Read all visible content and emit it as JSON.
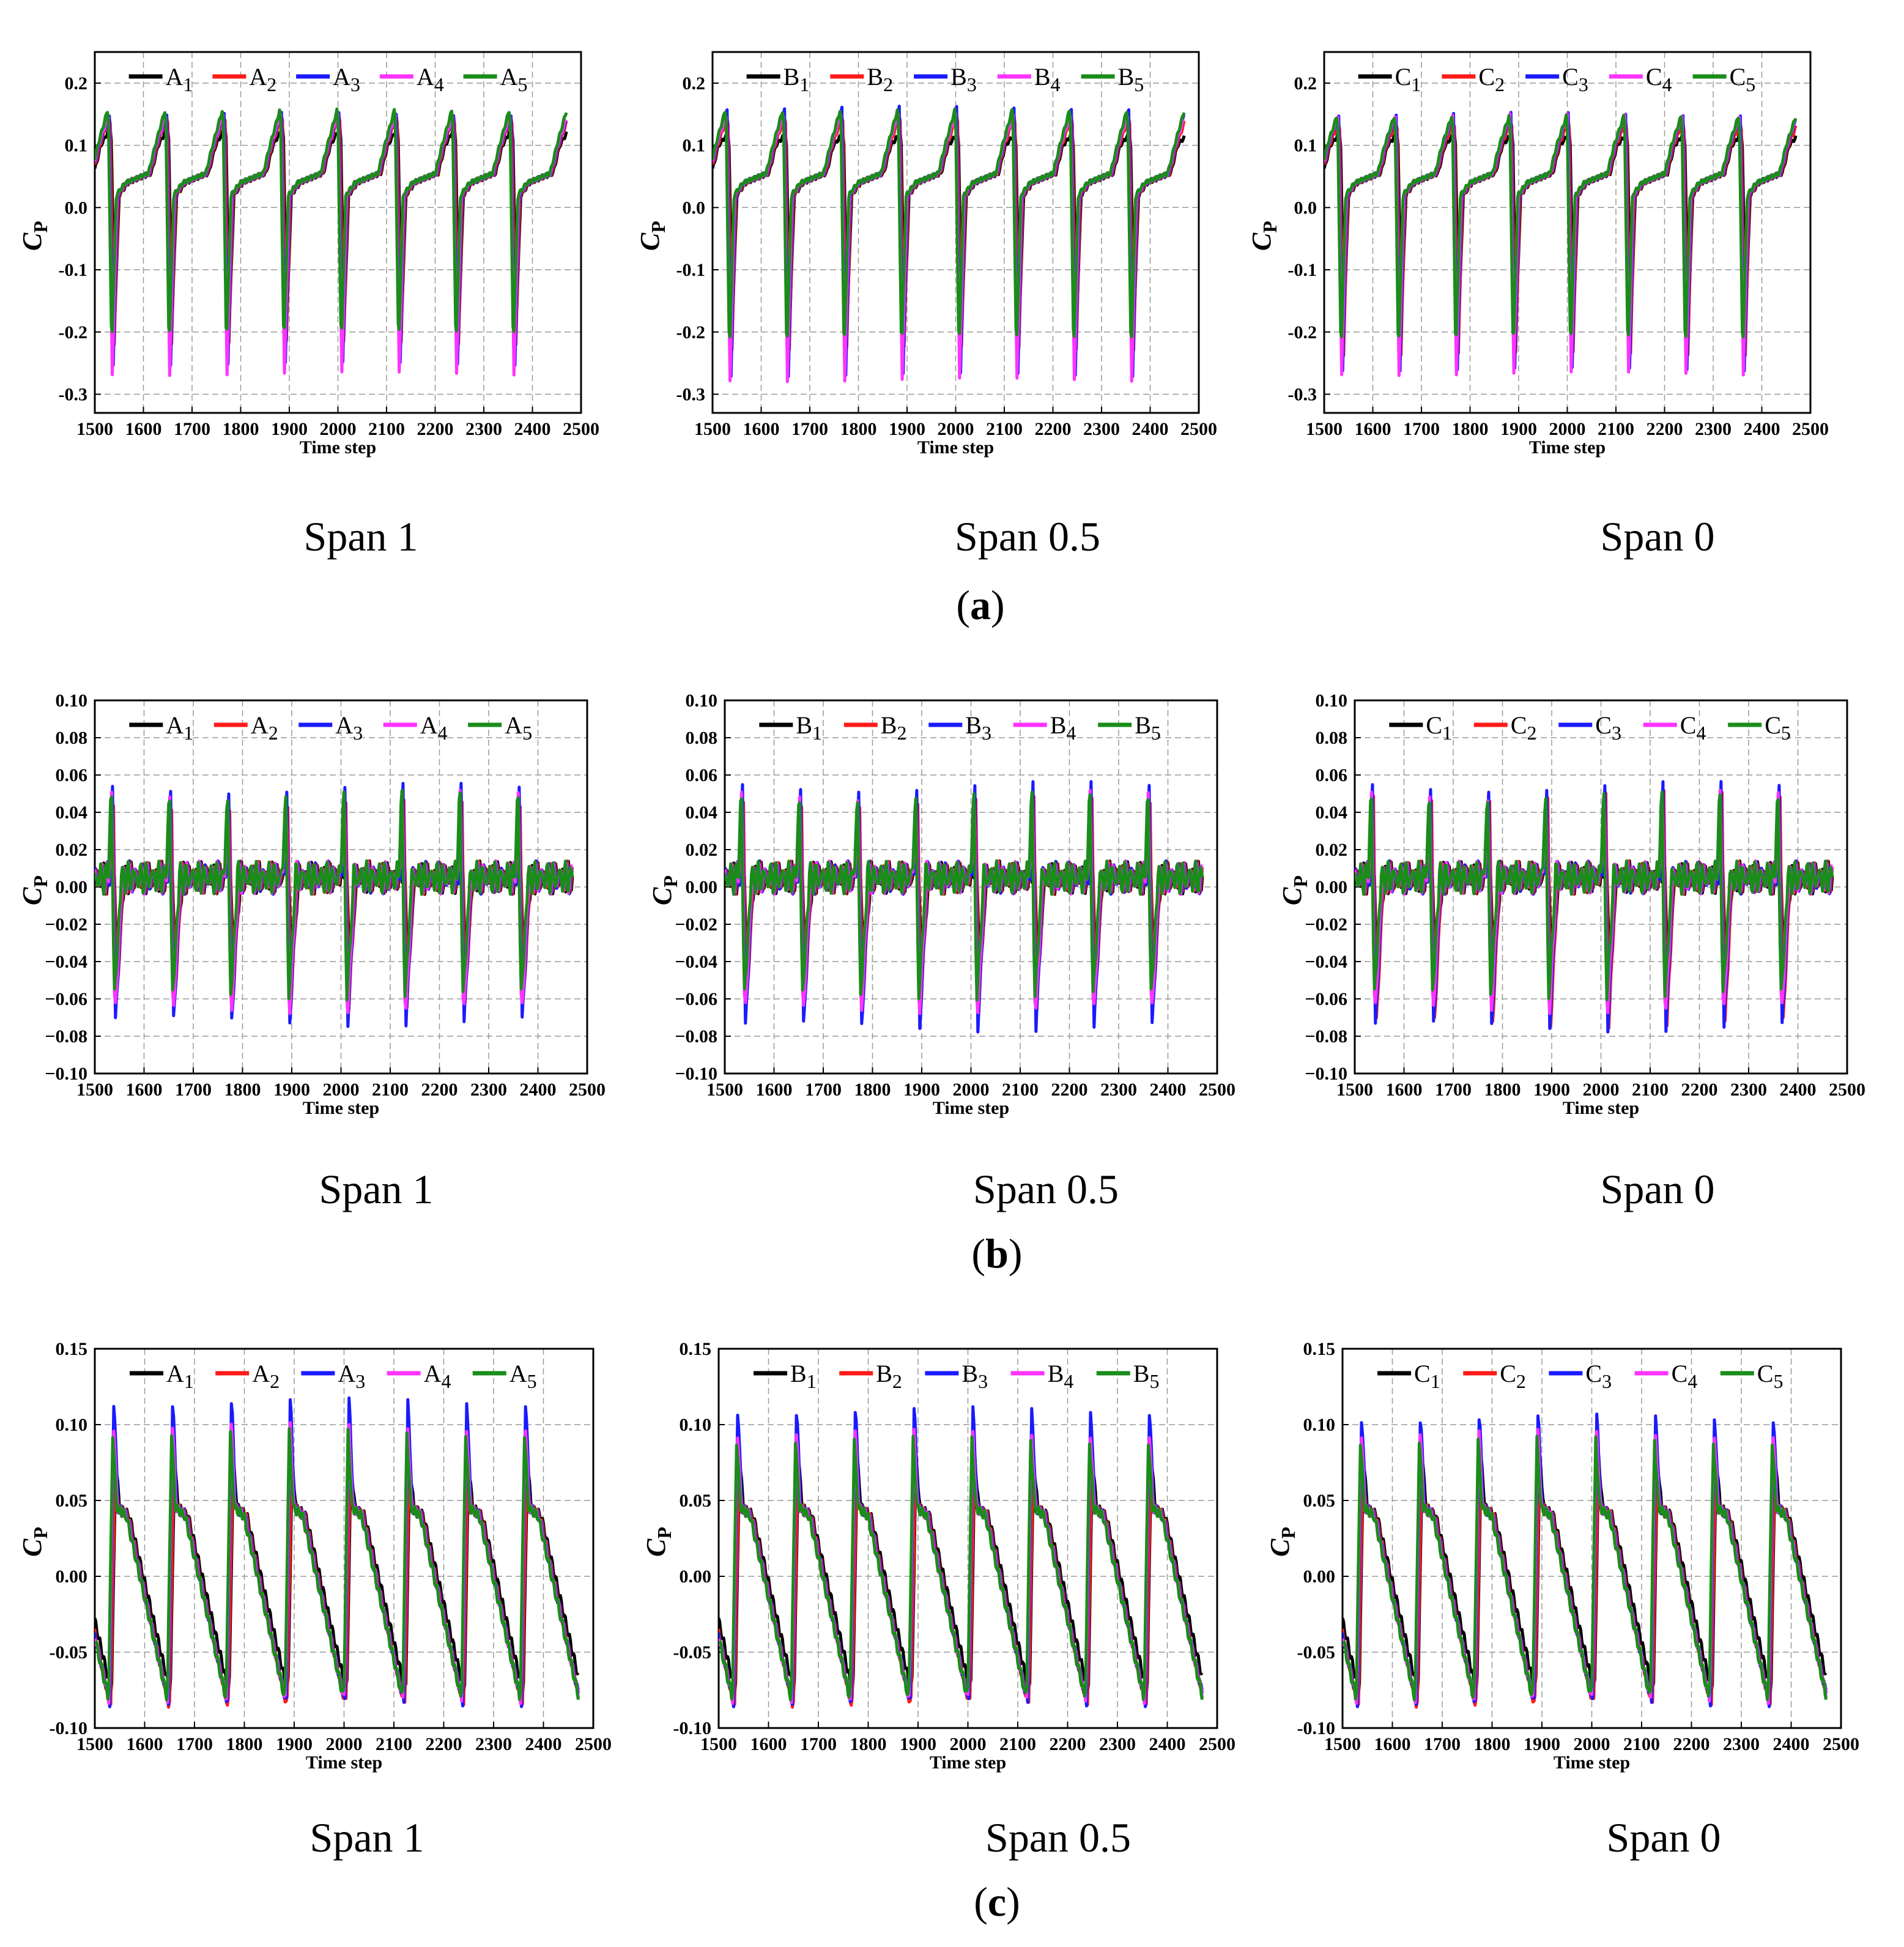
{
  "colors": {
    "series": [
      "#000000",
      "#ff1a1a",
      "#1a1aff",
      "#ff33ff",
      "#1a8c1a"
    ],
    "grid": "#9a9a9a",
    "axis": "#000000"
  },
  "axis": {
    "xlabel": "Time step",
    "ylabel": "C",
    "ylabel_sub": "P",
    "xlim": [
      1500,
      2500
    ],
    "xticks": [
      "1500",
      "1600",
      "1700",
      "1800",
      "1900",
      "2000",
      "2100",
      "2200",
      "2300",
      "2400",
      "2500"
    ]
  },
  "row_labels": [
    {
      "open": "(",
      "id": "a",
      "close": ")"
    },
    {
      "open": "(",
      "id": "b",
      "close": ")"
    },
    {
      "open": "(",
      "id": "c",
      "close": ")"
    }
  ],
  "chart_data": [
    {
      "type": "line",
      "row": 0,
      "caption": "Span 1",
      "legend": [
        "A",
        "A",
        "A",
        "A",
        "A"
      ],
      "legend_sub": [
        "1",
        "2",
        "3",
        "4",
        "5"
      ],
      "ylim": [
        -0.33,
        0.25
      ],
      "yticks": [
        "0.2",
        "0.1",
        "0.0",
        "-0.1",
        "-0.2",
        "-0.3"
      ],
      "ytick_values": [
        0.2,
        0.1,
        0.0,
        -0.1,
        -0.2,
        -0.3
      ],
      "waveform": "a",
      "t_start": 1500,
      "t_end": 2470,
      "period": 118,
      "series_minima": [
        -0.19,
        -0.25,
        -0.28,
        -0.27,
        -0.23
      ],
      "series_maxima": [
        0.13,
        0.15,
        0.15,
        0.15,
        0.16
      ]
    },
    {
      "type": "line",
      "row": 0,
      "caption": "Span 0.5",
      "legend": [
        "B",
        "B",
        "B",
        "B",
        "B"
      ],
      "legend_sub": [
        "1",
        "2",
        "3",
        "4",
        "5"
      ],
      "ylim": [
        -0.33,
        0.25
      ],
      "yticks": [
        "0.2",
        "0.1",
        "0.0",
        "-0.1",
        "-0.2",
        "-0.3"
      ],
      "ytick_values": [
        0.2,
        0.1,
        0.0,
        -0.1,
        -0.2,
        -0.3
      ],
      "waveform": "a",
      "t_start": 1500,
      "t_end": 2470,
      "period": 118,
      "series_minima": [
        -0.19,
        -0.26,
        -0.3,
        -0.28,
        -0.24
      ],
      "series_maxima": [
        0.12,
        0.15,
        0.16,
        0.15,
        0.16
      ]
    },
    {
      "type": "line",
      "row": 0,
      "caption": "Span 0",
      "legend": [
        "C",
        "C",
        "C",
        "C",
        "C"
      ],
      "legend_sub": [
        "1",
        "2",
        "3",
        "4",
        "5"
      ],
      "ylim": [
        -0.33,
        0.25
      ],
      "yticks": [
        "0.2",
        "0.1",
        "0.0",
        "-0.1",
        "-0.2",
        "-0.3"
      ],
      "ytick_values": [
        0.2,
        0.1,
        0.0,
        -0.1,
        -0.2,
        -0.3
      ],
      "waveform": "a",
      "t_start": 1500,
      "t_end": 2470,
      "period": 118,
      "series_minima": [
        -0.19,
        -0.27,
        -0.29,
        -0.27,
        -0.24
      ],
      "series_maxima": [
        0.12,
        0.14,
        0.15,
        0.15,
        0.15
      ]
    },
    {
      "type": "line",
      "row": 1,
      "caption": "Span 1",
      "legend": [
        "A",
        "A",
        "A",
        "A",
        "A"
      ],
      "legend_sub": [
        "1",
        "2",
        "3",
        "4",
        "5"
      ],
      "ylim": [
        -0.1,
        0.1
      ],
      "yticks": [
        "0.10",
        "0.08",
        "0.06",
        "0.04",
        "0.02",
        "0.00",
        "−0.02",
        "−0.04",
        "−0.06",
        "−0.08",
        "−0.10"
      ],
      "ytick_values": [
        0.1,
        0.08,
        0.06,
        0.04,
        0.02,
        0.0,
        -0.02,
        -0.04,
        -0.06,
        -0.08,
        -0.1
      ],
      "waveform": "b",
      "t_start": 1500,
      "t_end": 2470,
      "period": 118,
      "series_minima": [
        -0.045,
        -0.065,
        -0.073,
        -0.072,
        -0.06
      ],
      "series_maxima": [
        0.012,
        0.05,
        0.055,
        0.055,
        0.058
      ]
    },
    {
      "type": "line",
      "row": 1,
      "caption": "Span 0.5",
      "legend": [
        "B",
        "B",
        "B",
        "B",
        "B"
      ],
      "legend_sub": [
        "1",
        "2",
        "3",
        "4",
        "5"
      ],
      "ylim": [
        -0.1,
        0.1
      ],
      "yticks": [
        "0.10",
        "0.08",
        "0.06",
        "0.04",
        "0.02",
        "0.00",
        "−0.02",
        "−0.04",
        "−0.06",
        "−0.08",
        "−0.10"
      ],
      "ytick_values": [
        0.1,
        0.08,
        0.06,
        0.04,
        0.02,
        0.0,
        -0.02,
        -0.04,
        -0.06,
        -0.08,
        -0.1
      ],
      "waveform": "b",
      "t_start": 1500,
      "t_end": 2470,
      "period": 118,
      "series_minima": [
        -0.045,
        -0.066,
        -0.076,
        -0.072,
        -0.06
      ],
      "series_maxima": [
        0.012,
        0.052,
        0.056,
        0.055,
        0.057
      ]
    },
    {
      "type": "line",
      "row": 1,
      "caption": "Span 0",
      "legend": [
        "C",
        "C",
        "C",
        "C",
        "C"
      ],
      "legend_sub": [
        "1",
        "2",
        "3",
        "4",
        "5"
      ],
      "ylim": [
        -0.1,
        0.1
      ],
      "yticks": [
        "0.10",
        "0.08",
        "0.06",
        "0.04",
        "0.02",
        "0.00",
        "−0.02",
        "−0.04",
        "−0.06",
        "−0.08",
        "−0.10"
      ],
      "ytick_values": [
        0.1,
        0.08,
        0.06,
        0.04,
        0.02,
        0.0,
        -0.02,
        -0.04,
        -0.06,
        -0.08,
        -0.1
      ],
      "waveform": "b",
      "t_start": 1500,
      "t_end": 2470,
      "period": 118,
      "series_minima": [
        -0.045,
        -0.075,
        -0.076,
        -0.072,
        -0.06
      ],
      "series_maxima": [
        0.013,
        0.056,
        0.056,
        0.055,
        0.057
      ]
    },
    {
      "type": "line",
      "row": 2,
      "caption": "Span 1",
      "legend": [
        "A",
        "A",
        "A",
        "A",
        "A"
      ],
      "legend_sub": [
        "1",
        "2",
        "3",
        "4",
        "5"
      ],
      "ylim": [
        -0.1,
        0.15
      ],
      "yticks": [
        "0.15",
        "0.10",
        "0.05",
        "0.00",
        "-0.05",
        "-0.10"
      ],
      "ytick_values": [
        0.15,
        0.1,
        0.05,
        0.0,
        -0.05,
        -0.1
      ],
      "waveform": "c",
      "t_start": 1500,
      "t_end": 2470,
      "period": 118,
      "series_minima": [
        -0.077,
        -0.086,
        -0.083,
        -0.082,
        -0.081
      ],
      "series_maxima": [
        0.075,
        0.065,
        0.121,
        0.105,
        0.095
      ]
    },
    {
      "type": "line",
      "row": 2,
      "caption": "Span 0.5",
      "legend": [
        "B",
        "B",
        "B",
        "B",
        "B"
      ],
      "legend_sub": [
        "1",
        "2",
        "3",
        "4",
        "5"
      ],
      "ylim": [
        -0.1,
        0.15
      ],
      "yticks": [
        "0.15",
        "0.10",
        "0.05",
        "0.00",
        "-0.05",
        "-0.10"
      ],
      "ytick_values": [
        0.15,
        0.1,
        0.05,
        0.0,
        -0.05,
        -0.1
      ],
      "waveform": "c",
      "t_start": 1500,
      "t_end": 2470,
      "period": 118,
      "series_minima": [
        -0.077,
        -0.086,
        -0.083,
        -0.082,
        -0.081
      ],
      "series_maxima": [
        0.078,
        0.062,
        0.115,
        0.1,
        0.09
      ]
    },
    {
      "type": "line",
      "row": 2,
      "caption": "Span 0",
      "legend": [
        "C",
        "C",
        "C",
        "C",
        "C"
      ],
      "legend_sub": [
        "1",
        "2",
        "3",
        "4",
        "5"
      ],
      "ylim": [
        -0.1,
        0.15
      ],
      "yticks": [
        "0.15",
        "0.10",
        "0.05",
        "0.00",
        "-0.05",
        "-0.10"
      ],
      "ytick_values": [
        0.15,
        0.1,
        0.05,
        0.0,
        -0.05,
        -0.1
      ],
      "waveform": "c",
      "t_start": 1500,
      "t_end": 2470,
      "period": 118,
      "series_minima": [
        -0.077,
        -0.086,
        -0.083,
        -0.082,
        -0.081
      ],
      "series_maxima": [
        0.078,
        0.062,
        0.11,
        0.1,
        0.09
      ]
    }
  ]
}
